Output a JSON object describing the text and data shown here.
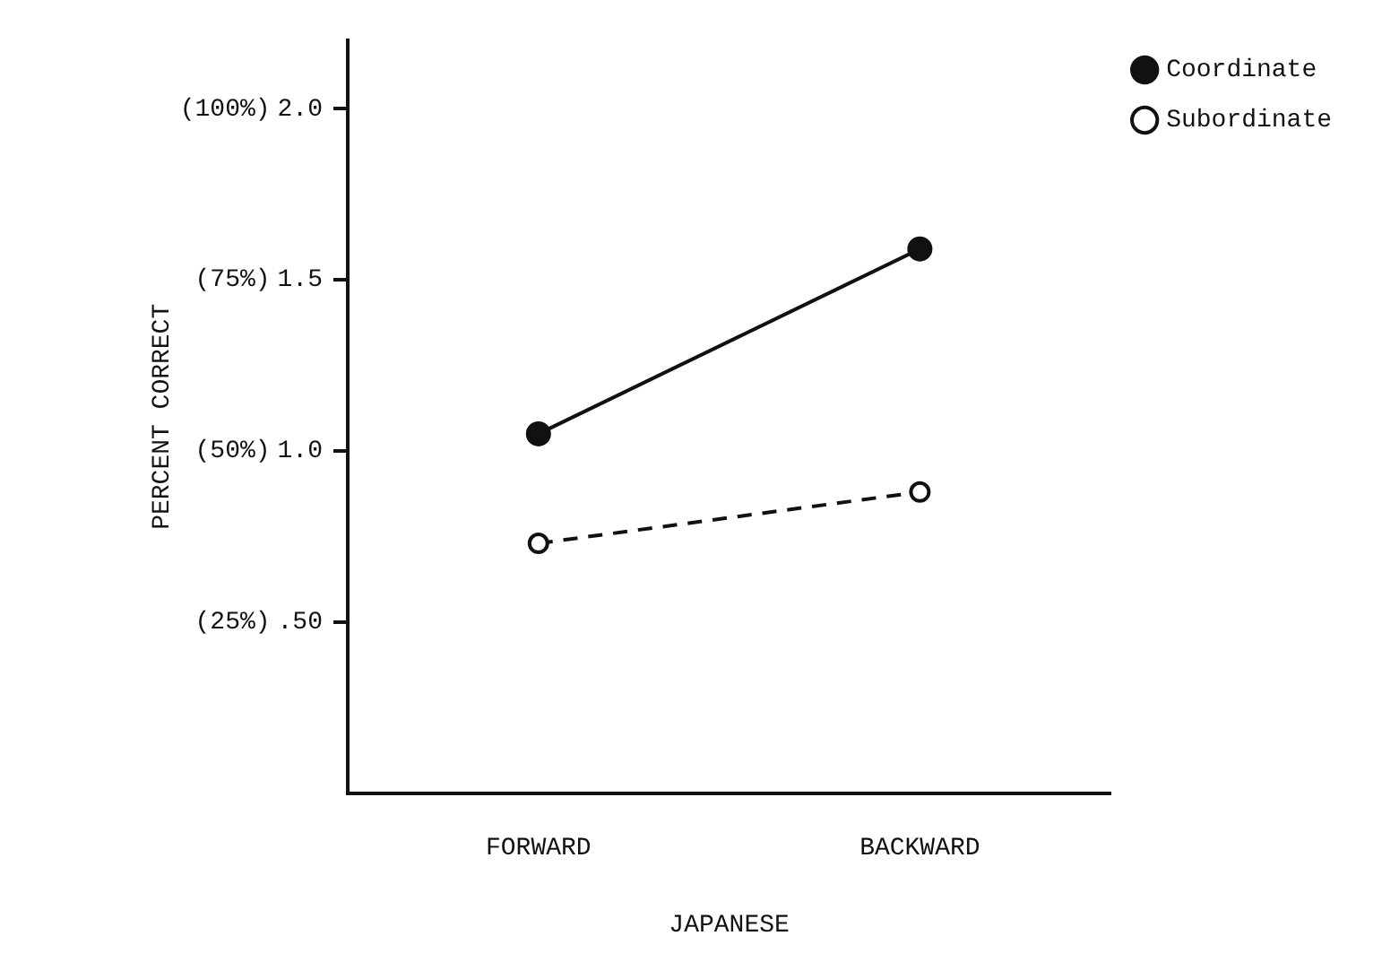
{
  "chart_data": {
    "type": "line",
    "xlabel": "JAPANESE",
    "ylabel": "PERCENT CORRECT",
    "categories": [
      "FORWARD",
      "BACKWARD"
    ],
    "series": [
      {
        "name": "Coordinate",
        "color": "#111111",
        "values": [
          1.05,
          1.59
        ],
        "marker": "circle",
        "line_style": "solid"
      },
      {
        "name": "Subordinate",
        "color": "#111111",
        "values": [
          0.73,
          0.88
        ],
        "marker": "circle",
        "line_style": "dashed"
      }
    ],
    "ylim": [
      0,
      2.2
    ],
    "yticks": [
      {
        "value": 0.5,
        "label": ".50"
      },
      {
        "value": 1.0,
        "label": "1.0"
      },
      {
        "value": 1.5,
        "label": "1.5"
      },
      {
        "value": 2.0,
        "label": "2.0"
      }
    ],
    "annotations": [
      "(25%)",
      "(50%)",
      "(75%)",
      "(100%)"
    ],
    "grid": false,
    "legend": "top right"
  }
}
